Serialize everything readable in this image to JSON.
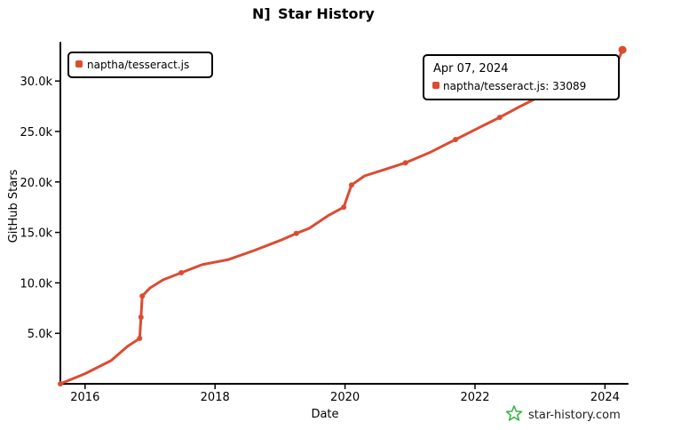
{
  "colors": {
    "series": "#dd4b31",
    "axis": "#000000",
    "watermark_icon": "#3cb44b"
  },
  "title": {
    "logo_text": "N]",
    "text": "Star History"
  },
  "watermark": {
    "icon": "star-outline-icon",
    "text": "star-history.com"
  },
  "tooltip": {
    "date": "Apr 07, 2024",
    "line": "naptha/tesseract.js: 33089"
  },
  "chart_data": {
    "type": "line",
    "title": "Star History",
    "xlabel": "Date",
    "ylabel": "GitHub Stars",
    "x_ticks": [
      "2016",
      "2018",
      "2020",
      "2022",
      "2024"
    ],
    "y_ticks": [
      "5.0k",
      "10.0k",
      "15.0k",
      "20.0k",
      "25.0k",
      "30.0k"
    ],
    "x_tick_values": [
      2016,
      2018,
      2020,
      2022,
      2024
    ],
    "y_tick_values": [
      5000,
      10000,
      15000,
      20000,
      25000,
      30000
    ],
    "xlim": [
      2015.62,
      2024.35
    ],
    "ylim": [
      0,
      33800
    ],
    "grid": false,
    "legend_position": "top-left",
    "series": [
      {
        "name": "naptha/tesseract.js",
        "x": [
          2015.62,
          2016.0,
          2016.4,
          2016.65,
          2016.84,
          2016.86,
          2016.88,
          2017.0,
          2017.2,
          2017.48,
          2017.8,
          2018.2,
          2018.6,
          2019.0,
          2019.25,
          2019.45,
          2019.75,
          2019.98,
          2020.1,
          2020.3,
          2020.6,
          2020.93,
          2021.3,
          2021.7,
          2022.1,
          2022.38,
          2022.7,
          2023.1,
          2023.5,
          2023.8,
          2024.0,
          2024.2,
          2024.27
        ],
        "y": [
          0,
          1000,
          2300,
          3700,
          4500,
          6600,
          8700,
          9500,
          10300,
          11000,
          11800,
          12300,
          13200,
          14200,
          14900,
          15400,
          16700,
          17500,
          19700,
          20600,
          21200,
          21900,
          22900,
          24200,
          25500,
          26400,
          27500,
          28800,
          30000,
          31200,
          31700,
          32000,
          33089
        ]
      }
    ]
  }
}
